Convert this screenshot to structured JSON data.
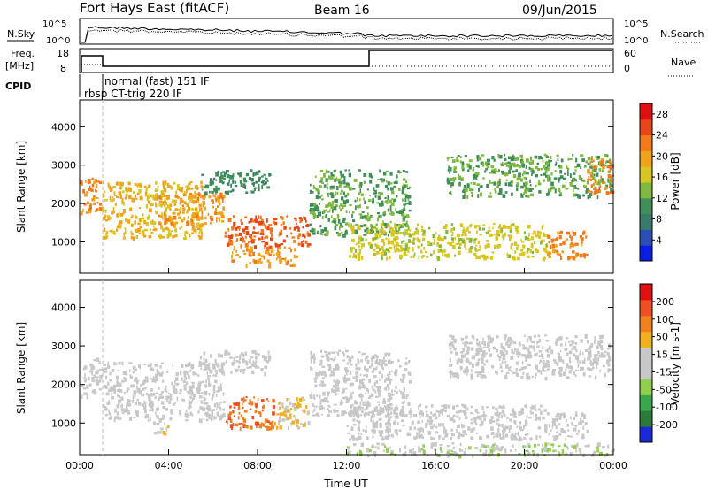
{
  "header": {
    "radar": "Fort Hays East (fitACF)",
    "beam": "Beam 16",
    "date": "09/Jun/2015"
  },
  "top_panels": {
    "nsky_label": "N.Sky",
    "nsearch_label": "N.Search",
    "freq_label": "Freq.",
    "freq_unit": "[MHz]",
    "nave_label": "Nave",
    "cpid_label": "CPID",
    "noise_ticks_left": [
      "10^5",
      "10^0"
    ],
    "noise_ticks_right": [
      "10^5",
      "10^0"
    ],
    "freq_ticks": [
      "18",
      "8"
    ],
    "nave_ticks": [
      "60",
      "0"
    ],
    "cpid_text_1": "normal (fast) 151 IF",
    "cpid_text_2": "rbsp CT-trig 220 IF"
  },
  "colors": {
    "power_scale": [
      "#0a1fe6",
      "#2b4fb8",
      "#3a7a6a",
      "#3f8f5a",
      "#7fba3e",
      "#d8c522",
      "#f0a21c",
      "#f27a1a",
      "#e8461a",
      "#e01010"
    ],
    "velocity_scale": [
      "#1a2ad8",
      "#2a7a3a",
      "#3aa84a",
      "#8fd04a",
      "#c8c8c8",
      "#c8c8c8",
      "#f0b020",
      "#f08020",
      "#f05020",
      "#e01010"
    ]
  },
  "chart_data": [
    {
      "type": "heatmap",
      "title": "Power",
      "xlabel": "Time UT",
      "ylabel": "Slant Range [km]",
      "colorbar_label": "Power [dB]",
      "colorbar_ticks": [
        "4",
        "8",
        "12",
        "16",
        "20",
        "24",
        "28"
      ],
      "colorbar_range": [
        0,
        30
      ],
      "x_ticks": [
        "00:00",
        "04:00",
        "08:00",
        "12:00",
        "16:00",
        "20:00",
        "00:00"
      ],
      "xlim_hours": [
        0,
        24
      ],
      "y_ticks": [
        "1000",
        "2000",
        "3000",
        "4000"
      ],
      "ylim": [
        180,
        4700
      ],
      "echo_regions": [
        {
          "t0": 0.0,
          "t1": 0.9,
          "r0": 1700,
          "r1": 2700,
          "value": 22
        },
        {
          "t0": 1.0,
          "t1": 5.5,
          "r0": 1100,
          "r1": 2600,
          "value": 18
        },
        {
          "t0": 3.5,
          "t1": 6.5,
          "r0": 1500,
          "r1": 2300,
          "value": 20
        },
        {
          "t0": 5.3,
          "t1": 8.5,
          "r0": 2300,
          "r1": 2900,
          "value": 10
        },
        {
          "t0": 6.5,
          "t1": 10.3,
          "r0": 900,
          "r1": 1700,
          "value": 24
        },
        {
          "t0": 6.8,
          "t1": 9.8,
          "r0": 400,
          "r1": 900,
          "value": 20
        },
        {
          "t0": 10.3,
          "t1": 14.8,
          "r0": 1200,
          "r1": 2900,
          "value": 12
        },
        {
          "t0": 12.0,
          "t1": 21.0,
          "r0": 600,
          "r1": 1500,
          "value": 16
        },
        {
          "t0": 16.5,
          "t1": 23.9,
          "r0": 2200,
          "r1": 3300,
          "value": 12
        },
        {
          "t0": 21.0,
          "t1": 22.8,
          "r0": 600,
          "r1": 1300,
          "value": 22
        },
        {
          "t0": 22.8,
          "t1": 24.0,
          "r0": 2300,
          "r1": 3200,
          "value": 22
        }
      ]
    },
    {
      "type": "heatmap",
      "title": "Velocity",
      "xlabel": "Time UT",
      "ylabel": "Slant Range [km]",
      "colorbar_label": "Velocity [m s-1]",
      "colorbar_ticks": [
        "200",
        "100",
        "50",
        "15",
        "-15",
        "-50",
        "-100",
        "-200"
      ],
      "colorbar_range": [
        -250,
        250
      ],
      "x_ticks": [
        "00:00",
        "04:00",
        "08:00",
        "12:00",
        "16:00",
        "20:00",
        "00:00"
      ],
      "xlim_hours": [
        0,
        24
      ],
      "y_ticks": [
        "1000",
        "2000",
        "3000",
        "4000"
      ],
      "ylim": [
        180,
        4700
      ],
      "echo_regions": [
        {
          "t0": 0.0,
          "t1": 0.9,
          "r0": 1700,
          "r1": 2700,
          "value": 0
        },
        {
          "t0": 1.0,
          "t1": 6.5,
          "r0": 1100,
          "r1": 2600,
          "value": -10
        },
        {
          "t0": 3.3,
          "t1": 4.0,
          "r0": 700,
          "r1": 1050,
          "value": 40
        },
        {
          "t0": 5.3,
          "t1": 8.5,
          "r0": 2300,
          "r1": 2900,
          "value": 0
        },
        {
          "t0": 6.5,
          "t1": 8.7,
          "r0": 900,
          "r1": 1700,
          "value": 150
        },
        {
          "t0": 8.7,
          "t1": 10.3,
          "r0": 900,
          "r1": 1700,
          "value": 60
        },
        {
          "t0": 10.3,
          "t1": 14.8,
          "r0": 1200,
          "r1": 2900,
          "value": 10
        },
        {
          "t0": 12.0,
          "t1": 21.0,
          "r0": 600,
          "r1": 1500,
          "value": 0
        },
        {
          "t0": 16.5,
          "t1": 23.9,
          "r0": 2200,
          "r1": 3300,
          "value": 0
        },
        {
          "t0": 21.0,
          "t1": 22.8,
          "r0": 600,
          "r1": 1300,
          "value": 0
        },
        {
          "t0": 12.0,
          "t1": 24.0,
          "r0": 180,
          "r1": 500,
          "value": -40
        }
      ]
    }
  ]
}
